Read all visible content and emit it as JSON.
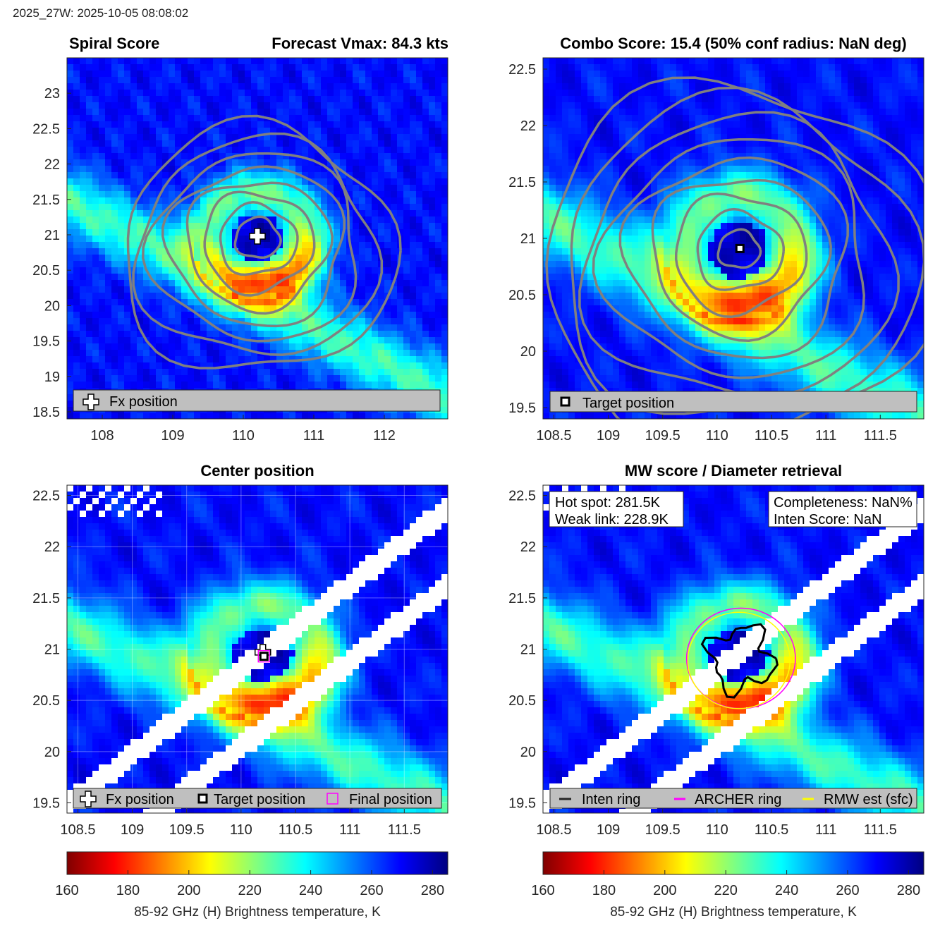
{
  "header": {
    "timestamp": "2025_27W: 2025-10-05 08:08:02"
  },
  "palette": {
    "tb_stops": [
      "#800000",
      "#ff0000",
      "#ff8000",
      "#ffff00",
      "#80ff80",
      "#00ffff",
      "#0080ff",
      "#0000ff",
      "#000080"
    ],
    "contour": "#808080",
    "legend_bg": "#bfbfbf",
    "archer": "#ff00ff",
    "rmw": "#ffff00"
  },
  "chart_data": [
    {
      "type": "heatmap",
      "panel": "spiral",
      "title_left": "Spiral Score",
      "title_right": "Forecast Vmax: 84.3 kts",
      "xlim": [
        107.5,
        112.9
      ],
      "ylim": [
        18.4,
        23.5
      ],
      "xticks": [
        "108",
        "109",
        "110",
        "111",
        "112"
      ],
      "xtick_values": [
        108,
        109,
        110,
        111,
        112
      ],
      "yticks": [
        "18.5",
        "19",
        "19.5",
        "20",
        "20.5",
        "21",
        "21.5",
        "22",
        "22.5",
        "23"
      ],
      "ytick_values": [
        18.5,
        19,
        19.5,
        20,
        20.5,
        21,
        21.5,
        22,
        22.5,
        23
      ],
      "center": [
        110.2,
        20.95
      ],
      "markers": [
        {
          "kind": "fx",
          "x": 110.2,
          "y": 20.98
        }
      ],
      "legend": [
        "Fx position"
      ],
      "contours": true
    },
    {
      "type": "heatmap",
      "panel": "combo",
      "title": "Combo Score: 15.4  (50% conf radius: NaN deg)",
      "xlim": [
        108.4,
        111.9
      ],
      "ylim": [
        19.4,
        22.6
      ],
      "xticks": [
        "108.5",
        "109",
        "109.5",
        "110",
        "110.5",
        "111",
        "111.5"
      ],
      "xtick_values": [
        108.5,
        109,
        109.5,
        110,
        110.5,
        111,
        111.5
      ],
      "yticks": [
        "19.5",
        "20",
        "20.5",
        "21",
        "21.5",
        "22",
        "22.5"
      ],
      "ytick_values": [
        19.5,
        20,
        20.5,
        21,
        21.5,
        22,
        22.5
      ],
      "center": [
        110.2,
        20.9
      ],
      "markers": [
        {
          "kind": "target",
          "x": 110.21,
          "y": 20.91
        }
      ],
      "legend": [
        "Target position"
      ],
      "contours": true
    },
    {
      "type": "heatmap",
      "panel": "center",
      "title": "Center position",
      "xlim": [
        108.4,
        111.9
      ],
      "ylim": [
        19.4,
        22.6
      ],
      "xticks": [
        "108.5",
        "109",
        "109.5",
        "110",
        "110.5",
        "111",
        "111.5"
      ],
      "xtick_values": [
        108.5,
        109,
        109.5,
        110,
        110.5,
        111,
        111.5
      ],
      "yticks": [
        "19.5",
        "20",
        "20.5",
        "21",
        "21.5",
        "22",
        "22.5"
      ],
      "ytick_values": [
        19.5,
        20,
        20.5,
        21,
        21.5,
        22,
        22.5
      ],
      "grid": true,
      "markers": [
        {
          "kind": "fx",
          "x": 110.2,
          "y": 20.97
        },
        {
          "kind": "target",
          "x": 110.21,
          "y": 20.93
        },
        {
          "kind": "final",
          "x": 110.21,
          "y": 20.93
        }
      ],
      "legend": [
        "Fx position",
        "Target position",
        "Final position"
      ]
    },
    {
      "type": "heatmap",
      "panel": "mw",
      "title": "MW score / Diameter retrieval",
      "xlim": [
        108.4,
        111.9
      ],
      "ylim": [
        19.4,
        22.6
      ],
      "xticks": [
        "108.5",
        "109",
        "109.5",
        "110",
        "110.5",
        "111",
        "111.5"
      ],
      "xtick_values": [
        108.5,
        109,
        109.5,
        110,
        110.5,
        111,
        111.5
      ],
      "yticks": [
        "19.5",
        "20",
        "20.5",
        "21",
        "21.5",
        "22",
        "22.5"
      ],
      "ytick_values": [
        19.5,
        20,
        20.5,
        21,
        21.5,
        22,
        22.5
      ],
      "info_left": [
        "Hot spot: 281.5K",
        "Weak link: 228.9K"
      ],
      "info_right": [
        "Completeness: NaN%",
        "Inten Score: NaN"
      ],
      "rings": {
        "center": [
          110.22,
          20.91
        ],
        "archer_radius_deg": 0.5,
        "rmw_radius_deg": 0.47
      },
      "legend": [
        "Inten ring",
        "ARCHER ring",
        "RMW est (sfc)"
      ]
    }
  ],
  "colorbars": [
    {
      "min": 160,
      "max": 285,
      "ticks": [
        "160",
        "180",
        "200",
        "220",
        "240",
        "260",
        "280"
      ],
      "tick_values": [
        160,
        180,
        200,
        220,
        240,
        260,
        280
      ],
      "label": "85-92 GHz (H) Brightness temperature, K"
    },
    {
      "min": 160,
      "max": 285,
      "ticks": [
        "160",
        "180",
        "200",
        "220",
        "240",
        "260",
        "280"
      ],
      "tick_values": [
        160,
        180,
        200,
        220,
        240,
        260,
        280
      ],
      "label": "85-92 GHz (H) Brightness temperature, K"
    }
  ]
}
